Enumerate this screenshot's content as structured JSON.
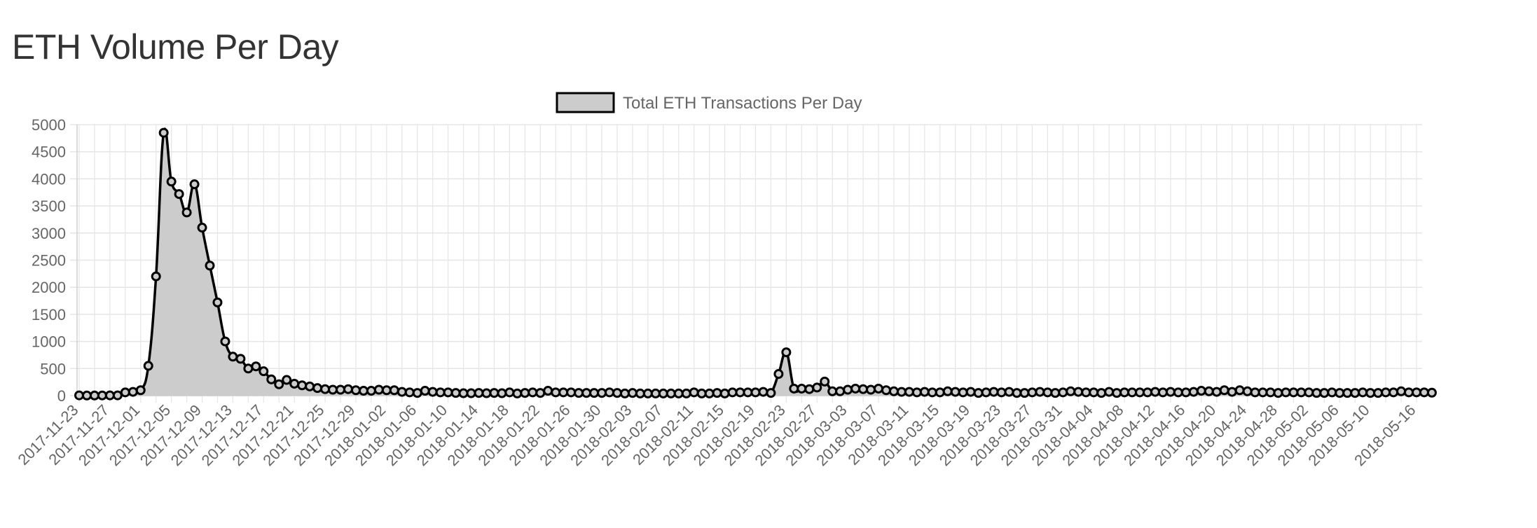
{
  "page": {
    "title": "ETH Volume Per Day"
  },
  "colors": {
    "line": "#000000",
    "fill": "#cccccc",
    "grid": "#e5e5e5",
    "axis_text": "#666666",
    "title_text": "#333333"
  },
  "chart_data": {
    "type": "line",
    "title": "",
    "xlabel": "",
    "ylabel": "",
    "ylim": [
      0,
      5000
    ],
    "y_ticks": [
      0,
      500,
      1000,
      1500,
      2000,
      2500,
      3000,
      3500,
      4000,
      4500,
      5000
    ],
    "legend_position": "top-center",
    "grid": true,
    "filled_area": true,
    "x_start_date": "2017-11-23",
    "x_end_date": "2018-05-16",
    "x_tick_labels": [
      "2017-11-23",
      "2017-11-27",
      "2017-12-01",
      "2017-12-05",
      "2017-12-09",
      "2017-12-13",
      "2017-12-17",
      "2017-12-21",
      "2017-12-25",
      "2017-12-29",
      "2018-01-02",
      "2018-01-06",
      "2018-01-10",
      "2018-01-14",
      "2018-01-18",
      "2018-01-22",
      "2018-01-26",
      "2018-01-30",
      "2018-02-03",
      "2018-02-07",
      "2018-02-11",
      "2018-02-15",
      "2018-02-19",
      "2018-02-23",
      "2018-02-27",
      "2018-03-03",
      "2018-03-07",
      "2018-03-11",
      "2018-03-15",
      "2018-03-19",
      "2018-03-23",
      "2018-03-27",
      "2018-03-31",
      "2018-04-04",
      "2018-04-08",
      "2018-04-12",
      "2018-04-16",
      "2018-04-20",
      "2018-04-24",
      "2018-04-28",
      "2018-05-02",
      "2018-05-06",
      "2018-05-10",
      "2018-05-16"
    ],
    "series": [
      {
        "name": "Total ETH Transactions Per Day",
        "values": [
          5,
          3,
          3,
          4,
          5,
          5,
          60,
          70,
          100,
          550,
          2200,
          4850,
          3950,
          3720,
          3380,
          3900,
          3100,
          2400,
          1720,
          1000,
          720,
          680,
          500,
          540,
          450,
          300,
          210,
          290,
          220,
          190,
          170,
          140,
          120,
          110,
          110,
          120,
          100,
          90,
          90,
          110,
          100,
          100,
          70,
          60,
          50,
          90,
          70,
          60,
          60,
          50,
          45,
          45,
          50,
          45,
          50,
          45,
          60,
          40,
          50,
          60,
          50,
          90,
          60,
          60,
          60,
          50,
          50,
          50,
          50,
          60,
          50,
          40,
          50,
          40,
          40,
          40,
          40,
          40,
          40,
          40,
          60,
          40,
          40,
          50,
          40,
          60,
          60,
          60,
          60,
          70,
          50,
          400,
          800,
          130,
          130,
          120,
          150,
          260,
          80,
          80,
          110,
          130,
          120,
          110,
          130,
          100,
          80,
          70,
          70,
          60,
          70,
          60,
          60,
          80,
          70,
          60,
          70,
          50,
          60,
          70,
          60,
          70,
          50,
          50,
          60,
          70,
          60,
          50,
          60,
          80,
          70,
          60,
          60,
          50,
          70,
          50,
          60,
          60,
          60,
          60,
          70,
          60,
          70,
          60,
          60,
          70,
          90,
          80,
          70,
          100,
          70,
          100,
          80,
          60,
          60,
          60,
          50,
          60,
          60,
          60,
          60,
          50,
          50,
          60,
          50,
          50,
          50,
          60,
          50,
          50,
          60,
          60,
          80,
          60,
          60,
          60,
          55
        ]
      }
    ]
  }
}
